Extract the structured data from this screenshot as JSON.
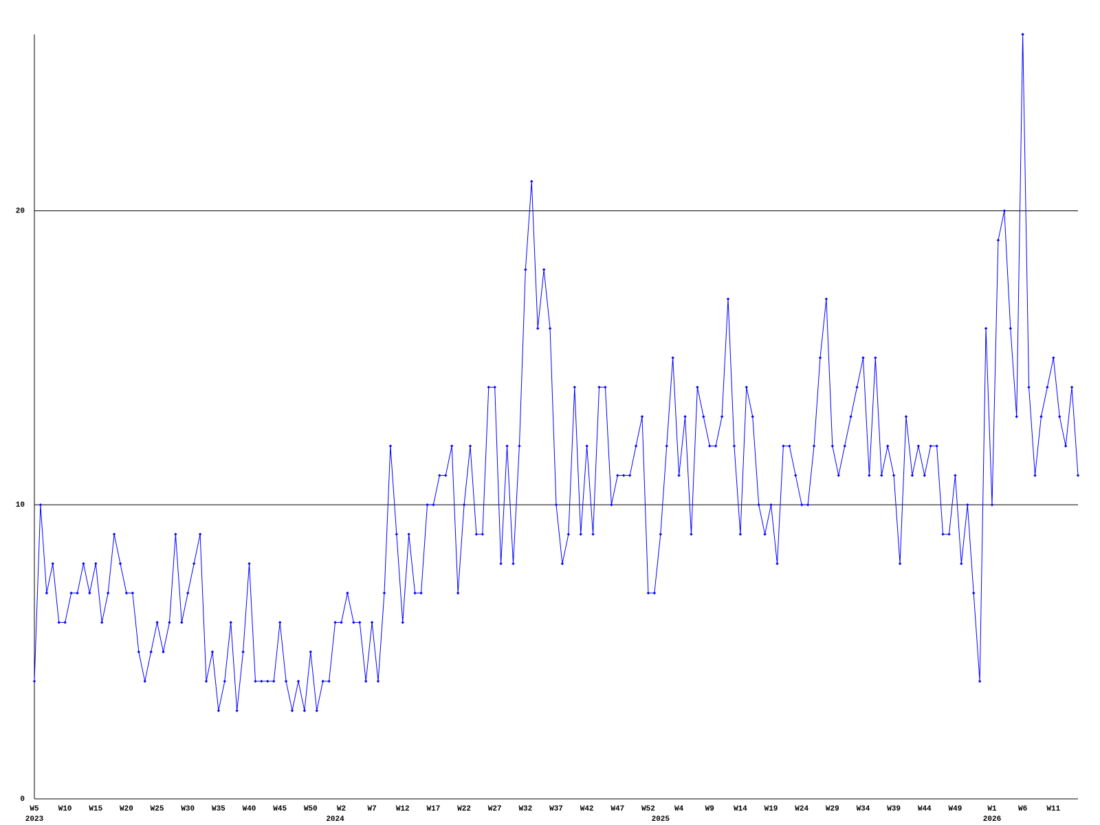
{
  "chart_data": {
    "type": "line",
    "categories": [
      "W5",
      null,
      null,
      null,
      null,
      "W10",
      null,
      null,
      null,
      null,
      "W15",
      null,
      null,
      null,
      null,
      "W20",
      null,
      null,
      null,
      null,
      "W25",
      null,
      null,
      null,
      null,
      "W30",
      null,
      null,
      null,
      null,
      "W35",
      null,
      null,
      null,
      null,
      "W40",
      null,
      null,
      null,
      null,
      "W45",
      null,
      null,
      null,
      null,
      "W50",
      null,
      null,
      null,
      null,
      "W2",
      null,
      null,
      null,
      null,
      "W7",
      null,
      null,
      null,
      null,
      "W12",
      null,
      null,
      null,
      null,
      "W17",
      null,
      null,
      null,
      null,
      "W22",
      null,
      null,
      null,
      null,
      "W27",
      null,
      null,
      null,
      null,
      "W32",
      null,
      null,
      null,
      null,
      "W37",
      null,
      null,
      null,
      null,
      "W42",
      null,
      null,
      null,
      null,
      "W47",
      null,
      null,
      null,
      null,
      "W52",
      null,
      null,
      null,
      null,
      "W4",
      null,
      null,
      null,
      null,
      "W9",
      null,
      null,
      null,
      null,
      "W14",
      null,
      null,
      null,
      null,
      "W19",
      null,
      null,
      null,
      null,
      "W24",
      null,
      null,
      null,
      null,
      "W29",
      null,
      null,
      null,
      null,
      "W34",
      null,
      null,
      null,
      null,
      "W39",
      null,
      null,
      null,
      null,
      "W44",
      null,
      null,
      null,
      null,
      "W49",
      null,
      null,
      null,
      null,
      null,
      "W1",
      null,
      null,
      null,
      null,
      "W6",
      null,
      null,
      null,
      null,
      "W11",
      null,
      null,
      null,
      null
    ],
    "year_labels": [
      {
        "text": "2023",
        "category_index": 0
      },
      {
        "text": "2024",
        "category_index": 49
      },
      {
        "text": "2025",
        "category_index": 102
      },
      {
        "text": "2026",
        "category_index": 156
      }
    ],
    "series": [
      {
        "color": "#0000ff",
        "values": [
          4,
          10,
          7,
          8,
          6,
          6,
          7,
          7,
          8,
          7,
          8,
          6,
          7,
          9,
          8,
          7,
          7,
          5,
          4,
          5,
          6,
          5,
          6,
          9,
          6,
          7,
          8,
          9,
          4,
          5,
          3,
          4,
          6,
          3,
          5,
          8,
          4,
          4,
          4,
          4,
          6,
          4,
          3,
          4,
          3,
          5,
          3,
          4,
          4,
          6,
          6,
          7,
          6,
          6,
          4,
          6,
          4,
          7,
          12,
          9,
          6,
          9,
          7,
          7,
          10,
          10,
          11,
          11,
          12,
          7,
          10,
          12,
          9,
          9,
          14,
          14,
          8,
          12,
          8,
          12,
          18,
          21,
          16,
          18,
          16,
          10,
          8,
          9,
          14,
          9,
          12,
          9,
          14,
          14,
          10,
          11,
          11,
          11,
          12,
          13,
          7,
          7,
          9,
          12,
          15,
          11,
          13,
          9,
          14,
          13,
          12,
          12,
          13,
          17,
          12,
          9,
          14,
          13,
          10,
          9,
          10,
          8,
          12,
          12,
          11,
          10,
          10,
          12,
          15,
          17,
          12,
          11,
          12,
          13,
          14,
          15,
          11,
          15,
          11,
          12,
          11,
          8,
          13,
          11,
          12,
          11,
          12,
          12,
          9,
          9,
          11,
          8,
          10,
          7,
          4,
          16,
          10,
          19,
          20,
          16,
          13,
          26,
          14,
          11,
          13,
          14,
          15,
          13,
          12,
          14,
          11
        ]
      }
    ],
    "ylim": [
      0,
      26
    ],
    "yticks": [
      0,
      10,
      20
    ],
    "grid": true
  }
}
